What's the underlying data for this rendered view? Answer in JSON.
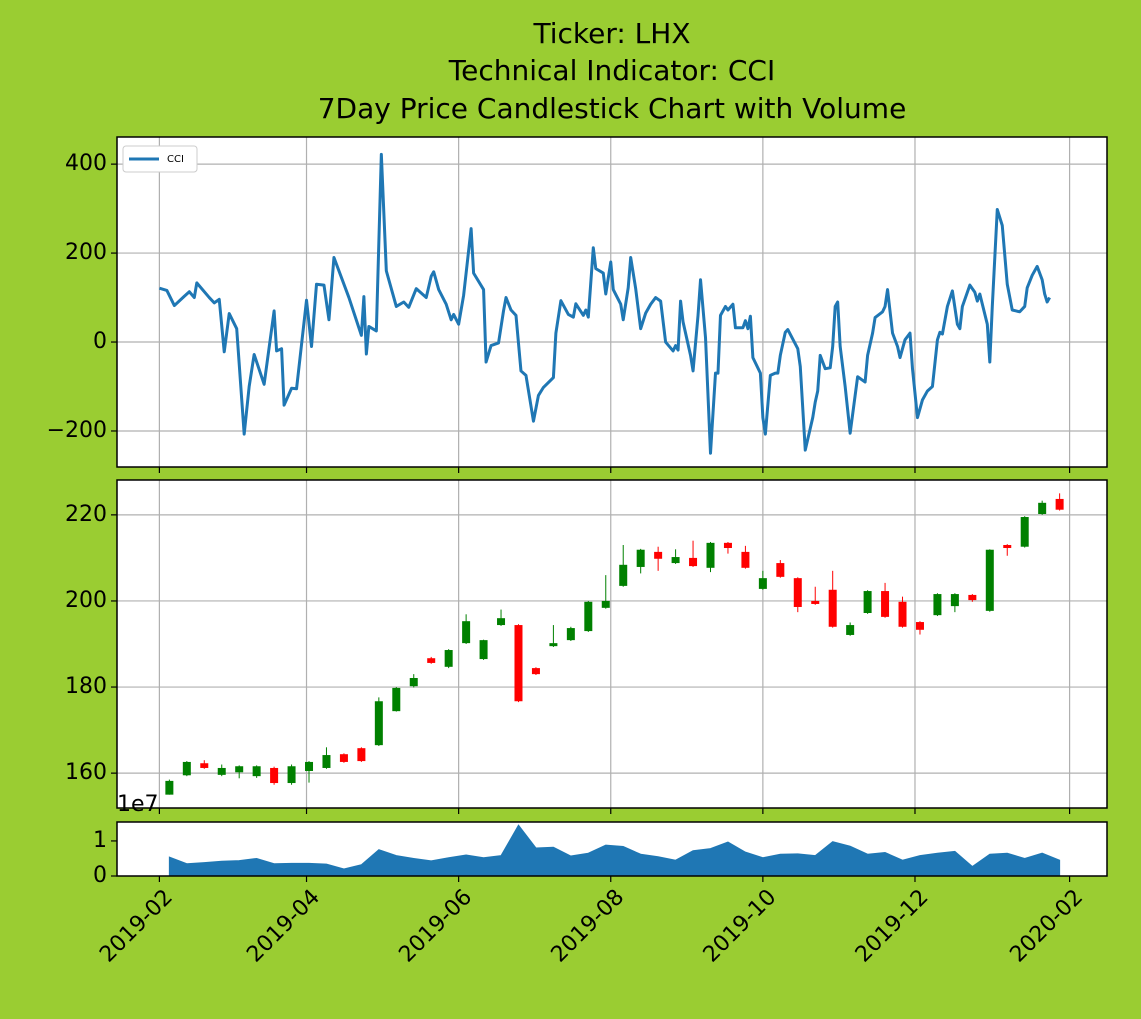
{
  "chart_data": [
    {
      "type": "line",
      "title": [
        "Ticker: LHX",
        "Technical Indicator: CCI",
        "7Day Price Candlestick Chart with Volume"
      ],
      "x": [
        "2019-02-01",
        "2019-02-04",
        "2019-02-07",
        "2019-02-11",
        "2019-02-13",
        "2019-02-15",
        "2019-02-16",
        "2019-02-21",
        "2019-02-23",
        "2019-02-25",
        "2019-02-27",
        "2019-03-01",
        "2019-03-04",
        "2019-03-07",
        "2019-03-09",
        "2019-03-11",
        "2019-03-15",
        "2019-03-19",
        "2019-03-20",
        "2019-03-22",
        "2019-03-23",
        "2019-03-26",
        "2019-03-28",
        "2019-04-01",
        "2019-04-03",
        "2019-04-05",
        "2019-04-08",
        "2019-04-10",
        "2019-04-12",
        "2019-04-18",
        "2019-04-23",
        "2019-04-24",
        "2019-04-25",
        "2019-04-26",
        "2019-04-29",
        "2019-05-01",
        "2019-05-03",
        "2019-05-07",
        "2019-05-10",
        "2019-05-12",
        "2019-05-15",
        "2019-05-19",
        "2019-05-21",
        "2019-05-22",
        "2019-05-24",
        "2019-05-27",
        "2019-05-29",
        "2019-05-30",
        "2019-06-01",
        "2019-06-03",
        "2019-06-05",
        "2019-06-06",
        "2019-06-07",
        "2019-06-11",
        "2019-06-12",
        "2019-06-14",
        "2019-06-17",
        "2019-06-19",
        "2019-06-20",
        "2019-06-22",
        "2019-06-24",
        "2019-06-26",
        "2019-06-28",
        "2019-07-01",
        "2019-07-03",
        "2019-07-05",
        "2019-07-09",
        "2019-07-10",
        "2019-07-12",
        "2019-07-15",
        "2019-07-17",
        "2019-07-18",
        "2019-07-21",
        "2019-07-22",
        "2019-07-23",
        "2019-07-25",
        "2019-07-26",
        "2019-07-29",
        "2019-07-30",
        "2019-08-01",
        "2019-08-02",
        "2019-08-05",
        "2019-08-06",
        "2019-08-08",
        "2019-08-09",
        "2019-08-11",
        "2019-08-13",
        "2019-08-15",
        "2019-08-17",
        "2019-08-19",
        "2019-08-21",
        "2019-08-23",
        "2019-08-26",
        "2019-08-27",
        "2019-08-28",
        "2019-08-29",
        "2019-08-30",
        "2019-09-02",
        "2019-09-03",
        "2019-09-05",
        "2019-09-06",
        "2019-09-08",
        "2019-09-10",
        "2019-09-12",
        "2019-09-13",
        "2019-09-14",
        "2019-09-16",
        "2019-09-17",
        "2019-09-19",
        "2019-09-20",
        "2019-09-23",
        "2019-09-24",
        "2019-09-25",
        "2019-09-26",
        "2019-09-27",
        "2019-09-30",
        "2019-10-01",
        "2019-10-02",
        "2019-10-04",
        "2019-10-06",
        "2019-10-07",
        "2019-10-08",
        "2019-10-10",
        "2019-10-11",
        "2019-10-15",
        "2019-10-16",
        "2019-10-18",
        "2019-10-21",
        "2019-10-22",
        "2019-10-23",
        "2019-10-24",
        "2019-10-26",
        "2019-10-28",
        "2019-10-29",
        "2019-10-30",
        "2019-10-31",
        "2019-11-01",
        "2019-11-03",
        "2019-11-05",
        "2019-11-07",
        "2019-11-08",
        "2019-11-11",
        "2019-11-12",
        "2019-11-14",
        "2019-11-15",
        "2019-11-18",
        "2019-11-19",
        "2019-11-20",
        "2019-11-22",
        "2019-11-24",
        "2019-11-25",
        "2019-11-27",
        "2019-11-29",
        "2019-11-30",
        "2019-12-02",
        "2019-12-04",
        "2019-12-06",
        "2019-12-08",
        "2019-12-10",
        "2019-12-11",
        "2019-12-12",
        "2019-12-14",
        "2019-12-16",
        "2019-12-18",
        "2019-12-19",
        "2019-12-20",
        "2019-12-23",
        "2019-12-25",
        "2019-12-26",
        "2019-12-27",
        "2019-12-30",
        "2019-12-31",
        "2020-01-01",
        "2020-01-03",
        "2020-01-05",
        "2020-01-07",
        "2020-01-09",
        "2020-01-12",
        "2020-01-14",
        "2020-01-15",
        "2020-01-17",
        "2020-01-19",
        "2020-01-21",
        "2020-01-22",
        "2020-01-23",
        "2020-01-24"
      ],
      "series": [
        {
          "name": "CCI",
          "color": "#1f77b4",
          "values": [
            121,
            116,
            82,
            103,
            113,
            100,
            133,
            100,
            88,
            96,
            -22,
            64,
            30,
            -207,
            -100,
            -28,
            -95,
            70,
            -20,
            -15,
            -142,
            -104,
            -105,
            94,
            -10,
            130,
            128,
            50,
            190,
            100,
            15,
            102,
            -27,
            35,
            25,
            422,
            160,
            80,
            90,
            78,
            120,
            100,
            148,
            158,
            118,
            85,
            50,
            62,
            40,
            105,
            205,
            255,
            155,
            118,
            -45,
            -8,
            -2,
            70,
            100,
            72,
            60,
            -65,
            -75,
            -178,
            -120,
            -102,
            -80,
            20,
            93,
            62,
            56,
            86,
            60,
            72,
            56,
            212,
            165,
            155,
            108,
            180,
            118,
            85,
            50,
            122,
            190,
            120,
            30,
            65,
            85,
            100,
            92,
            0,
            -20,
            -8,
            -18,
            92,
            45,
            -30,
            -65,
            60,
            140,
            10,
            -250,
            -70,
            -70,
            60,
            80,
            72,
            85,
            32,
            32,
            48,
            30,
            58,
            -35,
            -70,
            -170,
            -207,
            -75,
            -70,
            -70,
            -30,
            22,
            28,
            -15,
            -55,
            -243,
            -170,
            -135,
            -110,
            -30,
            -60,
            -58,
            -10,
            80,
            90,
            -10,
            -100,
            -205,
            -120,
            -78,
            -90,
            -30,
            20,
            55,
            68,
            80,
            118,
            20,
            -10,
            -35,
            5,
            20,
            -60,
            -170,
            -130,
            -110,
            -100,
            5,
            22,
            18,
            80,
            115,
            40,
            30,
            80,
            128,
            112,
            92,
            108,
            40,
            -45,
            80,
            298,
            262,
            130,
            72,
            68,
            80,
            122,
            150,
            170,
            140,
            108,
            90,
            100
          ]
        }
      ],
      "ylim": [
        -281,
        461
      ],
      "yticks": [
        {
          "value": -200,
          "label": "−200"
        },
        0,
        200,
        400
      ],
      "grid": true,
      "legend": "upper left"
    },
    {
      "type": "candlestick",
      "x": [
        "2019-02-05",
        "2019-02-12",
        "2019-02-19",
        "2019-02-26",
        "2019-03-05",
        "2019-03-12",
        "2019-03-19",
        "2019-03-26",
        "2019-04-02",
        "2019-04-09",
        "2019-04-16",
        "2019-04-23",
        "2019-04-30",
        "2019-05-07",
        "2019-05-14",
        "2019-05-21",
        "2019-05-28",
        "2019-06-04",
        "2019-06-11",
        "2019-06-18",
        "2019-06-25",
        "2019-07-02",
        "2019-07-09",
        "2019-07-16",
        "2019-07-23",
        "2019-07-30",
        "2019-08-06",
        "2019-08-13",
        "2019-08-20",
        "2019-08-27",
        "2019-09-03",
        "2019-09-10",
        "2019-09-17",
        "2019-09-24",
        "2019-10-01",
        "2019-10-08",
        "2019-10-15",
        "2019-10-22",
        "2019-10-29",
        "2019-11-05",
        "2019-11-12",
        "2019-11-19",
        "2019-11-26",
        "2019-12-03",
        "2019-12-10",
        "2019-12-17",
        "2019-12-24",
        "2019-12-31",
        "2020-01-07",
        "2020-01-14",
        "2020-01-21",
        "2020-01-28"
      ],
      "open": [
        155,
        159.5,
        162.3,
        159.6,
        160.2,
        159.3,
        161.2,
        157.7,
        160.5,
        161.2,
        164.4,
        165.8,
        166.5,
        174.4,
        180.2,
        186.7,
        184.7,
        190.2,
        186.5,
        194.4,
        194.4,
        184.4,
        189.5,
        190.9,
        193.0,
        198.4,
        203.5,
        207.9,
        211.4,
        208.8,
        210.0,
        207.7,
        213.5,
        211.4,
        202.8,
        208.8,
        205.3,
        200.0,
        202.6,
        192.1,
        197.2,
        202.3,
        199.8,
        195.1,
        196.7,
        198.8,
        201.4,
        197.7,
        213.0,
        212.6,
        220.2,
        223.7
      ],
      "high": [
        158.5,
        162.8,
        163.0,
        162.0,
        161.8,
        161.8,
        161.5,
        162.0,
        162.8,
        166.0,
        164.6,
        166.0,
        177.6,
        180.0,
        183.0,
        187.0,
        188.8,
        196.9,
        191.0,
        198.0,
        194.6,
        184.6,
        194.4,
        194.0,
        200.0,
        206.0,
        213.0,
        212.1,
        212.6,
        212.0,
        214.0,
        213.7,
        213.7,
        212.8,
        207.0,
        209.5,
        205.5,
        203.3,
        207.0,
        195.0,
        202.5,
        204.2,
        201.0,
        195.3,
        201.8,
        201.8,
        201.6,
        212.0,
        213.2,
        219.7,
        223.3,
        225.0
      ],
      "low": [
        155.0,
        159.3,
        161.0,
        159.3,
        158.8,
        158.9,
        157.3,
        157.3,
        157.8,
        161.0,
        162.4,
        162.6,
        166.3,
        174.3,
        179.9,
        185.4,
        184.4,
        190.0,
        186.3,
        194.2,
        176.5,
        182.8,
        189.3,
        190.7,
        192.8,
        198.2,
        203.3,
        206.4,
        207.0,
        208.6,
        207.9,
        206.7,
        211.0,
        207.5,
        202.6,
        205.4,
        197.4,
        199.1,
        193.8,
        191.9,
        197.0,
        196.1,
        193.8,
        192.2,
        196.5,
        197.4,
        199.8,
        197.5,
        210.5,
        212.4,
        220.0,
        221.0
      ],
      "close": [
        158.2,
        162.6,
        161.2,
        161.2,
        161.6,
        161.6,
        157.7,
        161.6,
        162.6,
        164.2,
        162.6,
        162.8,
        176.7,
        179.8,
        182.1,
        185.6,
        188.6,
        195.3,
        190.9,
        196.0,
        176.7,
        183.0,
        190.2,
        193.7,
        199.8,
        200.0,
        208.4,
        211.9,
        209.8,
        210.2,
        208.1,
        213.5,
        212.3,
        207.7,
        205.3,
        205.6,
        198.6,
        199.3,
        194.0,
        194.4,
        202.3,
        196.3,
        194.0,
        193.3,
        201.6,
        201.6,
        200.2,
        211.9,
        212.3,
        219.5,
        222.8,
        221.2
      ],
      "up_color": "green",
      "down_color": "red",
      "ylim": [
        151.9,
        228.1
      ],
      "yticks": [
        160,
        180,
        200,
        220
      ],
      "grid": true
    },
    {
      "type": "area",
      "x": [
        "2019-02-05",
        "2019-02-12",
        "2019-02-19",
        "2019-02-26",
        "2019-03-05",
        "2019-03-12",
        "2019-03-19",
        "2019-03-26",
        "2019-04-02",
        "2019-04-09",
        "2019-04-16",
        "2019-04-23",
        "2019-04-30",
        "2019-05-07",
        "2019-05-14",
        "2019-05-21",
        "2019-05-28",
        "2019-06-04",
        "2019-06-11",
        "2019-06-18",
        "2019-06-25",
        "2019-07-02",
        "2019-07-09",
        "2019-07-16",
        "2019-07-23",
        "2019-07-30",
        "2019-08-06",
        "2019-08-13",
        "2019-08-20",
        "2019-08-27",
        "2019-09-03",
        "2019-09-10",
        "2019-09-17",
        "2019-09-24",
        "2019-10-01",
        "2019-10-08",
        "2019-10-15",
        "2019-10-22",
        "2019-10-29",
        "2019-11-05",
        "2019-11-12",
        "2019-11-19",
        "2019-11-26",
        "2019-12-03",
        "2019-12-10",
        "2019-12-17",
        "2019-12-24",
        "2019-12-31",
        "2020-01-07",
        "2020-01-14",
        "2020-01-21",
        "2020-01-28"
      ],
      "values": [
        5400000,
        3500000,
        3800000,
        4200000,
        4400000,
        5000000,
        3500000,
        3600000,
        3600000,
        3400000,
        2000000,
        3200000,
        7500000,
        5800000,
        5000000,
        4300000,
        5200000,
        6000000,
        5200000,
        5800000,
        14500000,
        8000000,
        8200000,
        5700000,
        6500000,
        8800000,
        8400000,
        6200000,
        5500000,
        4500000,
        7200000,
        7800000,
        9700000,
        6800000,
        5200000,
        6200000,
        6300000,
        5800000,
        9800000,
        8500000,
        6200000,
        6700000,
        4500000,
        5800000,
        6500000,
        7000000,
        2700000,
        6200000,
        6500000,
        5000000,
        6500000,
        4500000
      ],
      "color": "#1f77b4",
      "ylim": [
        0,
        15400000
      ],
      "yticks": [
        0,
        {
          "value": 10000000,
          "label": "1"
        }
      ],
      "offset_label": "1e7",
      "grid": false,
      "xlim": [
        "2019-01-15",
        "2020-02-16"
      ],
      "xticks": [
        "2019-02",
        "2019-04",
        "2019-06",
        "2019-08",
        "2019-10",
        "2019-12",
        "2020-02"
      ]
    }
  ]
}
